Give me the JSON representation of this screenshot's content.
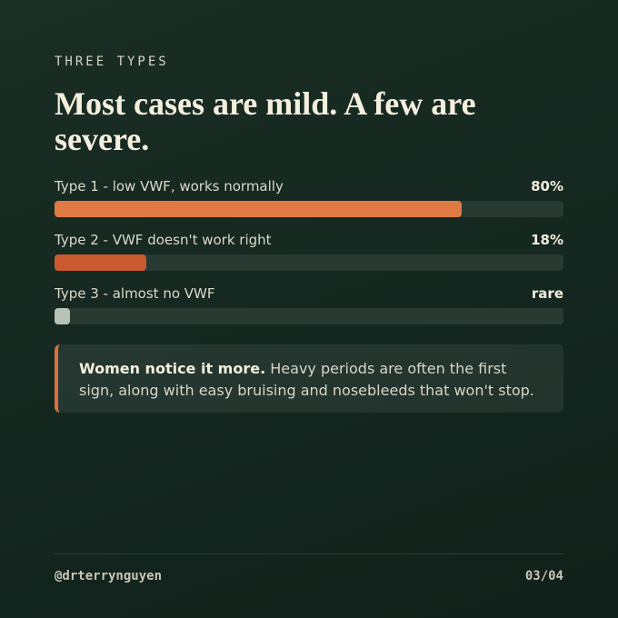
{
  "eyebrow": "THREE TYPES",
  "chart_data": {
    "type": "bar",
    "orientation": "horizontal",
    "title": "Most cases are mild. A few are severe.",
    "categories": [
      "Type 1 - low VWF, works normally",
      "Type 2 - VWF doesn't work right",
      "Type 3 - almost no VWF"
    ],
    "values": [
      80,
      18,
      3
    ],
    "value_labels": [
      "80%",
      "18%",
      "rare"
    ],
    "colors": [
      "#e07a45",
      "#c95a30",
      "#b8c2b6"
    ],
    "xlim": [
      0,
      100
    ]
  },
  "note": {
    "bold": "Women notice it more.",
    "text": "Heavy periods are often the first sign, along with easy bruising and nosebleeds that won't stop."
  },
  "footer": {
    "handle": "@drterrynguyen",
    "page": "03/04"
  }
}
